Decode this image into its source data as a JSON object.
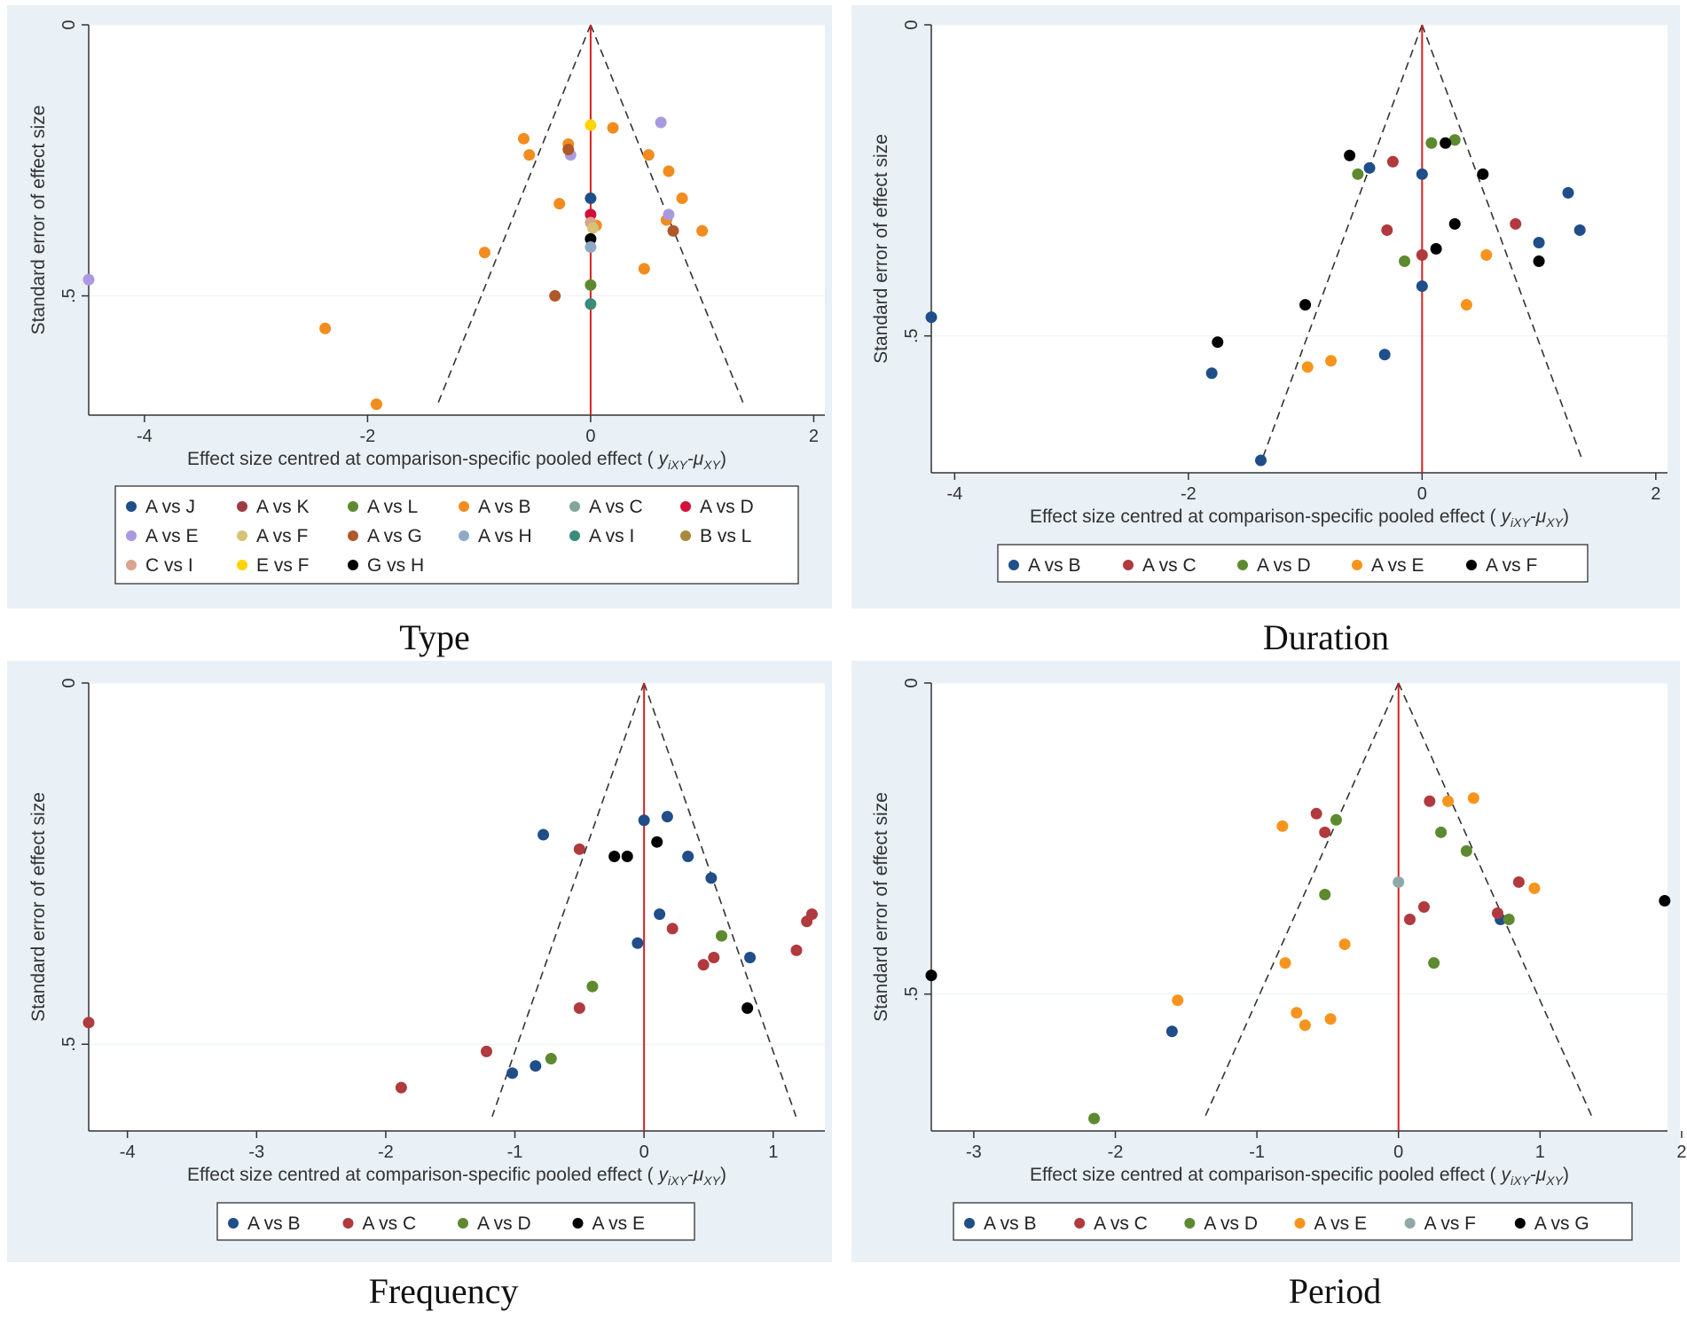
{
  "colors": {
    "A_vs_J": "#1f4e89",
    "A_vs_K": "#a03a42",
    "A_vs_L": "#5d8a2f",
    "A_vs_B_orange": "#f28c1e",
    "A_vs_C_teal": "#7fa89a",
    "A_vs_D_red": "#d0103a",
    "A_vs_E_lav": "#a99ae0",
    "A_vs_F_tan": "#d8c27a",
    "A_vs_G_brown": "#b0582a",
    "A_vs_H_lightblue": "#8ea9c6",
    "A_vs_I_teal": "#3b8a7a",
    "B_vs_L_olive": "#a98a3c",
    "C_vs_I_pink": "#d9a38f",
    "E_vs_F_yellow": "#ffd400",
    "black": "#000000",
    "blue": "#1f4e89",
    "red": "#b03a3e",
    "green": "#5d8a2f",
    "orange": "#f7941d",
    "grayteal": "#8fa8a8",
    "vline": "#d62020",
    "funnel": "#333333"
  },
  "captions": {
    "type": "Type",
    "duration": "Duration",
    "frequency": "Frequency",
    "period": "Period"
  },
  "chart_data": [
    {
      "id": "type",
      "type": "scatter",
      "title": "Type",
      "xlabel": "Effect size centred at comparison-specific pooled effect ( y_iXY-μ_XY)",
      "xlabel_plain": "Effect size centred at comparison-specific pooled effect (",
      "xlabel_math": "y",
      "xlabel_sub1": "iXY",
      "xlabel_mid": "-μ",
      "xlabel_sub2": "XY",
      "xlabel_close": ")",
      "ylabel": "Standard error of effect size",
      "xlim": [
        -4.5,
        2.1
      ],
      "ylim": [
        0,
        0.72
      ],
      "yreversed": true,
      "xticks": [
        -4,
        -2,
        0,
        2
      ],
      "xtick_labels": [
        "-4",
        "-2",
        "0",
        "2"
      ],
      "yticks": [
        0,
        0.5
      ],
      "ytick_labels": [
        "0",
        ".5"
      ],
      "funnel_bottom": 0.7,
      "legend": [
        {
          "label": "A vs J",
          "color": "#1f4e89"
        },
        {
          "label": "A vs K",
          "color": "#a03a42"
        },
        {
          "label": "A vs L",
          "color": "#5d8a2f"
        },
        {
          "label": "A vs B",
          "color": "#f28c1e"
        },
        {
          "label": "A vs C",
          "color": "#7fa89a"
        },
        {
          "label": "A vs D",
          "color": "#d0103a"
        },
        {
          "label": "A vs E",
          "color": "#a99ae0"
        },
        {
          "label": "A vs F",
          "color": "#d8c27a"
        },
        {
          "label": "A vs G",
          "color": "#b0582a"
        },
        {
          "label": "A vs H",
          "color": "#8ea9c6"
        },
        {
          "label": "A vs I",
          "color": "#3b8a7a"
        },
        {
          "label": "B vs L",
          "color": "#a98a3c"
        },
        {
          "label": "C vs I",
          "color": "#d9a38f"
        },
        {
          "label": "E vs F",
          "color": "#ffd400"
        },
        {
          "label": "G vs H",
          "color": "#000000"
        }
      ],
      "legend_cols": 6,
      "series": [
        {
          "name": "A vs B",
          "color": "#f28c1e",
          "points": [
            [
              -0.6,
              0.21
            ],
            [
              -0.55,
              0.24
            ],
            [
              -0.2,
              0.22
            ],
            [
              0.2,
              0.19
            ],
            [
              0.52,
              0.24
            ],
            [
              0.7,
              0.27
            ],
            [
              0.82,
              0.32
            ],
            [
              -0.28,
              0.33
            ],
            [
              0.05,
              0.37
            ],
            [
              0.68,
              0.36
            ],
            [
              1.0,
              0.38
            ],
            [
              -0.95,
              0.42
            ],
            [
              0.48,
              0.45
            ],
            [
              -2.38,
              0.56
            ],
            [
              -1.92,
              0.7
            ]
          ]
        },
        {
          "name": "A vs E",
          "color": "#a99ae0",
          "points": [
            [
              0.63,
              0.18
            ],
            [
              -0.18,
              0.24
            ],
            [
              0.7,
              0.35
            ],
            [
              -4.5,
              0.47
            ]
          ]
        },
        {
          "name": "A vs G",
          "color": "#b0582a",
          "points": [
            [
              -0.2,
              0.23
            ],
            [
              0.74,
              0.38
            ],
            [
              -0.32,
              0.5
            ]
          ]
        },
        {
          "name": "E vs F",
          "color": "#ffd400",
          "points": [
            [
              0.0,
              0.185
            ]
          ]
        },
        {
          "name": "A vs J",
          "color": "#1f4e89",
          "points": [
            [
              0.0,
              0.32
            ]
          ]
        },
        {
          "name": "A vs D",
          "color": "#d0103a",
          "points": [
            [
              0.0,
              0.35
            ]
          ]
        },
        {
          "name": "C vs I",
          "color": "#d9a38f",
          "points": [
            [
              0.0,
              0.365
            ]
          ]
        },
        {
          "name": "A vs F",
          "color": "#d8c27a",
          "points": [
            [
              0.02,
              0.375
            ]
          ]
        },
        {
          "name": "G vs H",
          "color": "#000000",
          "points": [
            [
              0.0,
              0.395
            ]
          ]
        },
        {
          "name": "A vs H",
          "color": "#8ea9c6",
          "points": [
            [
              0.0,
              0.41
            ]
          ]
        },
        {
          "name": "A vs L",
          "color": "#5d8a2f",
          "points": [
            [
              0.0,
              0.48
            ]
          ]
        },
        {
          "name": "A vs I",
          "color": "#3b8a7a",
          "points": [
            [
              0.0,
              0.515
            ]
          ]
        }
      ]
    },
    {
      "id": "duration",
      "type": "scatter",
      "title": "Duration",
      "xlabel": "Effect size centred at comparison-specific pooled effect ( y_iXY-μ_XY)",
      "xlabel_plain": "Effect size centred at comparison-specific pooled effect (",
      "xlabel_math": "y",
      "xlabel_sub1": "iXY",
      "xlabel_mid": "-μ",
      "xlabel_sub2": "XY",
      "xlabel_close": ")",
      "ylabel": "Standard error of effect size",
      "xlim": [
        -4.2,
        2.1
      ],
      "ylim": [
        0,
        0.72
      ],
      "yreversed": true,
      "xticks": [
        -4,
        -2,
        0,
        2
      ],
      "xtick_labels": [
        "-4",
        "-2",
        "0",
        "2"
      ],
      "yticks": [
        0,
        0.5
      ],
      "ytick_labels": [
        "0",
        ".5"
      ],
      "funnel_bottom": 0.7,
      "legend": [
        {
          "label": "A vs B",
          "color": "#1f4e89"
        },
        {
          "label": "A vs C",
          "color": "#b03a3e"
        },
        {
          "label": "A vs D",
          "color": "#5d8a2f"
        },
        {
          "label": "A vs E",
          "color": "#f7941d"
        },
        {
          "label": "A vs F",
          "color": "#000000"
        }
      ],
      "legend_cols": 5,
      "series": [
        {
          "name": "A vs B",
          "color": "#1f4e89",
          "points": [
            [
              -0.45,
              0.23
            ],
            [
              0.0,
              0.24
            ],
            [
              1.25,
              0.27
            ],
            [
              1.35,
              0.33
            ],
            [
              1.0,
              0.35
            ],
            [
              0.0,
              0.42
            ],
            [
              -0.32,
              0.53
            ],
            [
              -1.8,
              0.56
            ],
            [
              -1.38,
              0.7
            ],
            [
              -4.2,
              0.47
            ]
          ]
        },
        {
          "name": "A vs C",
          "color": "#b03a3e",
          "points": [
            [
              -0.25,
              0.22
            ],
            [
              -0.3,
              0.33
            ],
            [
              0.8,
              0.32
            ],
            [
              0.0,
              0.37
            ]
          ]
        },
        {
          "name": "A vs D",
          "color": "#5d8a2f",
          "points": [
            [
              0.08,
              0.19
            ],
            [
              0.28,
              0.185
            ],
            [
              -0.55,
              0.24
            ],
            [
              -0.15,
              0.38
            ]
          ]
        },
        {
          "name": "A vs E",
          "color": "#f7941d",
          "points": [
            [
              0.55,
              0.37
            ],
            [
              0.38,
              0.45
            ],
            [
              -0.78,
              0.54
            ],
            [
              -0.98,
              0.55
            ]
          ]
        },
        {
          "name": "A vs F",
          "color": "#000000",
          "points": [
            [
              -0.62,
              0.21
            ],
            [
              0.2,
              0.19
            ],
            [
              0.52,
              0.24
            ],
            [
              0.28,
              0.32
            ],
            [
              0.12,
              0.36
            ],
            [
              1.0,
              0.38
            ],
            [
              -1.0,
              0.45
            ],
            [
              -1.75,
              0.51
            ]
          ]
        }
      ]
    },
    {
      "id": "frequency",
      "type": "scatter",
      "title": "Frequency",
      "xlabel": "Effect size centred at comparison-specific pooled effect ( y_iXY-μ_XY)",
      "xlabel_plain": "Effect size centred at comparison-specific pooled effect (",
      "xlabel_math": "y",
      "xlabel_sub1": "iXY",
      "xlabel_mid": "-μ",
      "xlabel_sub2": "XY",
      "xlabel_close": ")",
      "ylabel": "Standard error of effect size",
      "xlim": [
        -4.3,
        1.4
      ],
      "ylim": [
        0,
        0.62
      ],
      "yreversed": true,
      "xticks": [
        -4,
        -3,
        -2,
        -1,
        0,
        1
      ],
      "xtick_labels": [
        "-4",
        "-3",
        "-2",
        "-1",
        "0",
        "1"
      ],
      "yticks": [
        0,
        0.5
      ],
      "ytick_labels": [
        "0",
        ".5"
      ],
      "funnel_bottom": 0.6,
      "legend": [
        {
          "label": "A vs B",
          "color": "#1f4e89"
        },
        {
          "label": "A vs C",
          "color": "#b03a3e"
        },
        {
          "label": "A vs D",
          "color": "#5d8a2f"
        },
        {
          "label": "A vs E",
          "color": "#000000"
        }
      ],
      "legend_cols": 4,
      "series": [
        {
          "name": "A vs B",
          "color": "#1f4e89",
          "points": [
            [
              -0.78,
              0.21
            ],
            [
              0.0,
              0.19
            ],
            [
              0.18,
              0.185
            ],
            [
              0.34,
              0.24
            ],
            [
              0.52,
              0.27
            ],
            [
              0.12,
              0.32
            ],
            [
              -0.05,
              0.36
            ],
            [
              0.82,
              0.38
            ],
            [
              -0.84,
              0.53
            ],
            [
              -1.02,
              0.54
            ]
          ]
        },
        {
          "name": "A vs C",
          "color": "#b03a3e",
          "points": [
            [
              -0.5,
              0.23
            ],
            [
              0.22,
              0.34
            ],
            [
              1.3,
              0.32
            ],
            [
              1.26,
              0.33
            ],
            [
              1.18,
              0.37
            ],
            [
              0.54,
              0.38
            ],
            [
              0.46,
              0.39
            ],
            [
              -0.5,
              0.45
            ],
            [
              -1.22,
              0.51
            ],
            [
              -1.88,
              0.56
            ],
            [
              -4.3,
              0.47
            ]
          ]
        },
        {
          "name": "A vs D",
          "color": "#5d8a2f",
          "points": [
            [
              0.6,
              0.35
            ],
            [
              -0.4,
              0.42
            ],
            [
              -0.72,
              0.52
            ]
          ]
        },
        {
          "name": "A vs E",
          "color": "#000000",
          "points": [
            [
              -0.23,
              0.24
            ],
            [
              -0.13,
              0.24
            ],
            [
              0.1,
              0.22
            ],
            [
              0.8,
              0.45
            ]
          ]
        }
      ]
    },
    {
      "id": "period",
      "type": "scatter",
      "title": "Period",
      "xlabel": "Effect size centred at comparison-specific pooled effect ( y_iXY-μ_XY)",
      "xlabel_plain": "Effect size centred at comparison-specific pooled effect (",
      "xlabel_math": "y",
      "xlabel_sub1": "iXY",
      "xlabel_mid": "-μ",
      "xlabel_sub2": "XY",
      "xlabel_close": ")",
      "ylabel": "Standard error of effect size",
      "xlim": [
        -3.3,
        1.9
      ],
      "ylim": [
        0,
        0.72
      ],
      "yreversed": true,
      "xticks": [
        -3,
        -2,
        -1,
        0,
        1,
        2
      ],
      "xtick_labels": [
        "-3",
        "-2",
        "-1",
        "0",
        "1",
        "2"
      ],
      "yticks": [
        0,
        0.5
      ],
      "ytick_labels": [
        "0",
        ".5"
      ],
      "funnel_bottom": 0.7,
      "legend": [
        {
          "label": "A vs B",
          "color": "#1f4e89"
        },
        {
          "label": "A vs C",
          "color": "#b03a3e"
        },
        {
          "label": "A vs D",
          "color": "#5d8a2f"
        },
        {
          "label": "A vs E",
          "color": "#f7941d"
        },
        {
          "label": "A vs F",
          "color": "#8fa8a8"
        },
        {
          "label": "A vs G",
          "color": "#000000"
        }
      ],
      "legend_cols": 6,
      "series": [
        {
          "name": "A vs B",
          "color": "#1f4e89",
          "points": [
            [
              0.72,
              0.38
            ],
            [
              -1.6,
              0.56
            ]
          ]
        },
        {
          "name": "A vs C",
          "color": "#b03a3e",
          "points": [
            [
              -0.58,
              0.21
            ],
            [
              0.22,
              0.19
            ],
            [
              -0.52,
              0.24
            ],
            [
              0.85,
              0.32
            ],
            [
              0.18,
              0.36
            ],
            [
              0.08,
              0.38
            ],
            [
              0.7,
              0.37
            ]
          ]
        },
        {
          "name": "A vs D",
          "color": "#5d8a2f",
          "points": [
            [
              -0.44,
              0.22
            ],
            [
              0.3,
              0.24
            ],
            [
              0.48,
              0.27
            ],
            [
              -0.52,
              0.34
            ],
            [
              0.78,
              0.38
            ],
            [
              0.25,
              0.45
            ],
            [
              -2.15,
              0.7
            ]
          ]
        },
        {
          "name": "A vs E",
          "color": "#f7941d",
          "points": [
            [
              -0.82,
              0.23
            ],
            [
              0.35,
              0.19
            ],
            [
              0.53,
              0.185
            ],
            [
              0.96,
              0.33
            ],
            [
              -0.38,
              0.42
            ],
            [
              -0.8,
              0.45
            ],
            [
              -1.56,
              0.51
            ],
            [
              -0.72,
              0.53
            ],
            [
              -0.48,
              0.54
            ],
            [
              -0.66,
              0.55
            ]
          ]
        },
        {
          "name": "A vs F",
          "color": "#8fa8a8",
          "points": [
            [
              0.0,
              0.32
            ]
          ]
        },
        {
          "name": "A vs G",
          "color": "#000000",
          "points": [
            [
              1.88,
              0.35
            ],
            [
              -3.3,
              0.47
            ]
          ]
        }
      ]
    }
  ]
}
